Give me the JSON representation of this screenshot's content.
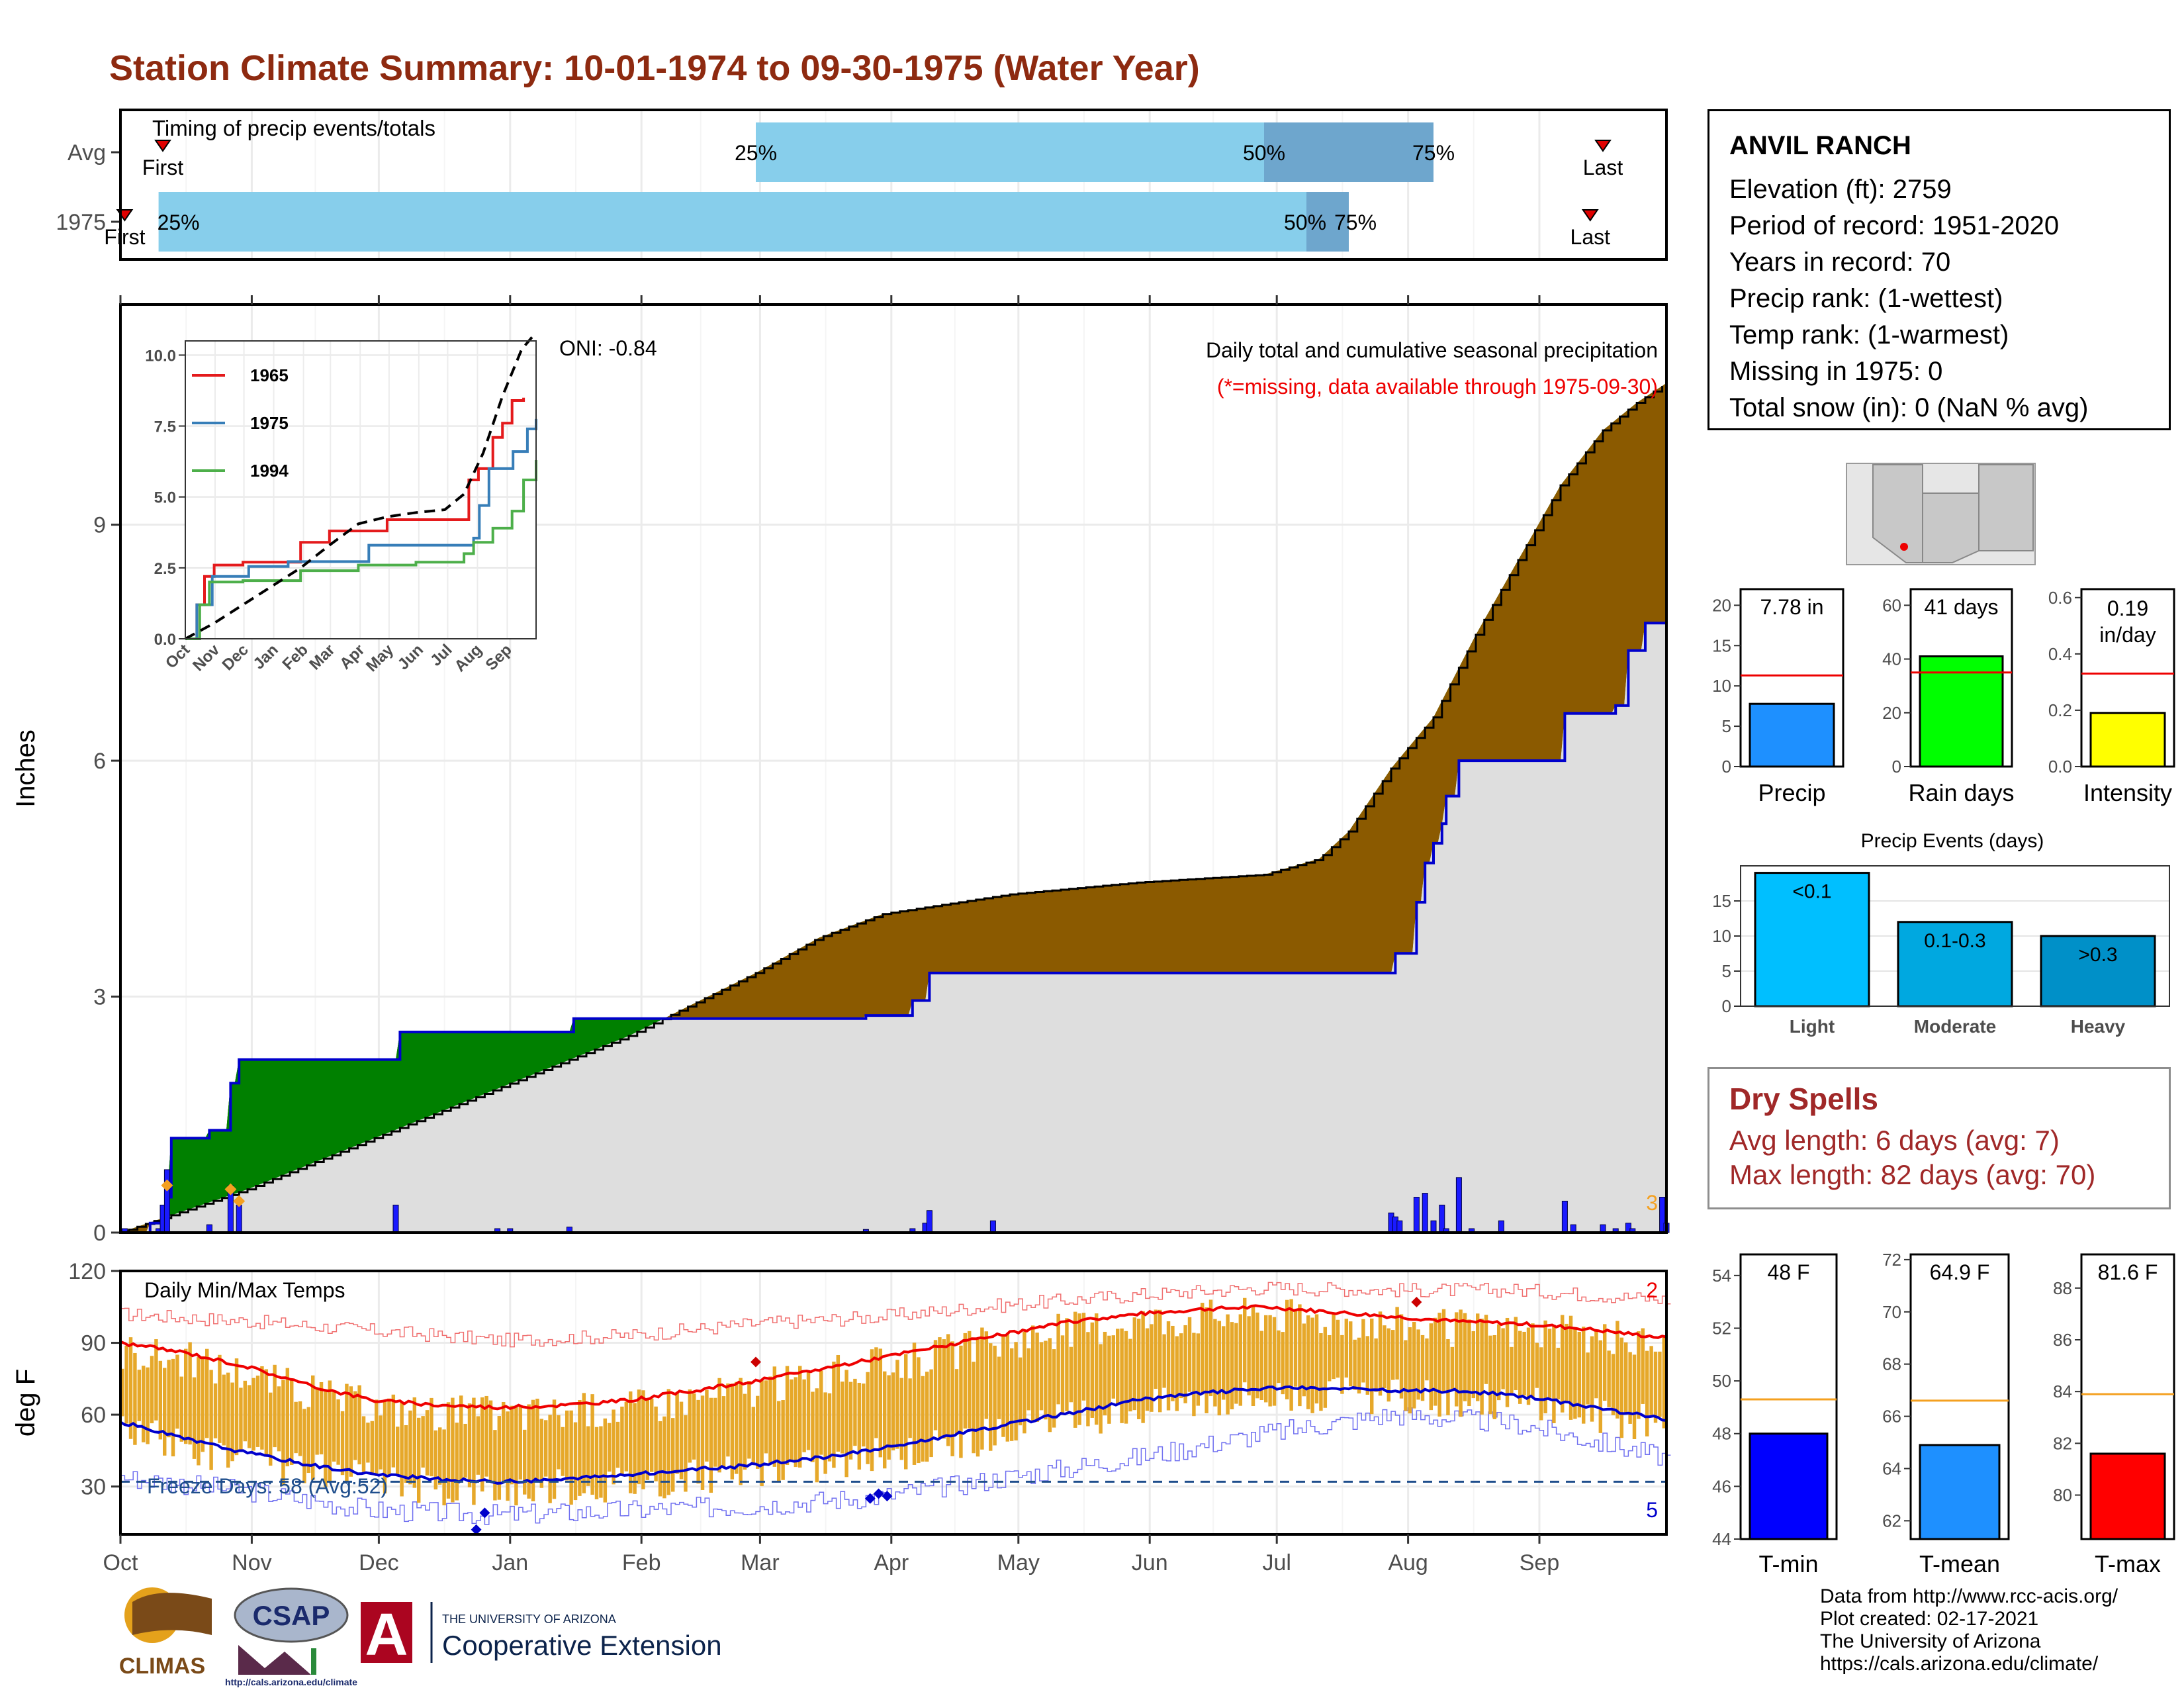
{
  "title": "Station Climate Summary: 10-01-1974 to 09-30-1975 (Water Year)",
  "station": {
    "name": "ANVIL RANCH",
    "lines": [
      "Elevation (ft): 2759",
      "Period of record: 1951-2020",
      "Years in record: 70",
      "Precip rank:  (1-wettest)",
      "Temp rank:  (1-warmest)",
      "Missing in 1975: 0",
      "Total snow (in): 0 (NaN % avg)"
    ]
  },
  "dry_spells": {
    "title": "Dry Spells",
    "avg": "Avg length: 6 days (avg: 7)",
    "max": "Max length: 82 days (avg: 70)"
  },
  "credits": [
    "Data from http://www.rcc-acis.org/",
    "Plot created: 02-17-2021",
    "The University of Arizona",
    "https://cals.arizona.edu/climate/"
  ],
  "logos": {
    "climas": "CLIMAS",
    "csap": "CSAP",
    "csap_url": "http://cals.arizona.edu/climate",
    "ua_small": "THE UNIVERSITY OF ARIZONA",
    "ua_big": "Cooperative Extension",
    "ua_letter": "A"
  },
  "colors": {
    "title": "#8e2a10",
    "above_avg": "#8b5a00",
    "below_avg": "#008000",
    "cum_1975": "#0000cc",
    "gray_fill": "#dedede",
    "daily_bar": "#1a1aff",
    "temp_bar": "#e6a82a",
    "tmax_line": "#ee0000",
    "tmin_line": "#0000cc",
    "light_blue": "#87ceeb",
    "mid_blue": "#6ea6cd"
  },
  "chart_data": [
    {
      "id": "timing",
      "type": "bar",
      "title": "Timing of precip events/totals",
      "rows": [
        "Avg",
        "1975"
      ],
      "x_domain_months": [
        "Oct",
        "Nov",
        "Dec",
        "Jan",
        "Feb",
        "Mar",
        "Apr",
        "May",
        "Jun",
        "Jul",
        "Aug",
        "Sep"
      ],
      "series": [
        {
          "name": "Avg",
          "first_day": 10,
          "p25_day": 150,
          "p50_day": 270,
          "p75_day": 310,
          "last_day": 350
        },
        {
          "name": "1975",
          "first_day": 1,
          "p25_day": 9,
          "p50_day": 280,
          "p75_day": 290,
          "last_day": 347
        }
      ],
      "labels": {
        "first": "First",
        "last": "Last",
        "p25": "25%",
        "p50": "50%",
        "p75": "75%"
      }
    },
    {
      "id": "precip",
      "type": "area",
      "annotation_main": "Daily total and cumulative seasonal precipitation",
      "annotation_missing": "(*=missing, data available through 1975-09-30)",
      "oni": "ONI: -0.84",
      "ylabel": "Inches",
      "yticks": [
        0,
        3,
        6,
        9
      ],
      "ylim": [
        0,
        11.8
      ],
      "xlim_days": [
        0,
        365
      ],
      "xlabels": [
        "Oct",
        "Nov",
        "Dec",
        "Jan",
        "Feb",
        "Mar",
        "Apr",
        "May",
        "Jun",
        "Jul",
        "Aug",
        "Sep"
      ],
      "corner_count": "3",
      "avg_cumulative": [
        [
          0,
          0
        ],
        [
          30,
          0.55
        ],
        [
          60,
          1.2
        ],
        [
          90,
          1.85
        ],
        [
          120,
          2.5
        ],
        [
          150,
          3.3
        ],
        [
          165,
          3.75
        ],
        [
          180,
          4.05
        ],
        [
          210,
          4.3
        ],
        [
          240,
          4.45
        ],
        [
          270,
          4.55
        ],
        [
          283,
          4.75
        ],
        [
          290,
          5.1
        ],
        [
          300,
          5.9
        ],
        [
          310,
          6.55
        ],
        [
          320,
          7.6
        ],
        [
          330,
          8.55
        ],
        [
          340,
          9.5
        ],
        [
          350,
          10.2
        ],
        [
          358,
          10.55
        ],
        [
          365,
          10.8
        ]
      ],
      "cumulative_1975": [
        [
          0,
          0
        ],
        [
          7,
          0.12
        ],
        [
          11,
          0.45
        ],
        [
          12,
          1.2
        ],
        [
          21,
          1.3
        ],
        [
          26,
          1.9
        ],
        [
          28,
          2.2
        ],
        [
          65,
          2.2
        ],
        [
          66,
          2.55
        ],
        [
          106,
          2.55
        ],
        [
          107,
          2.72
        ],
        [
          166,
          2.72
        ],
        [
          160,
          2.72
        ],
        [
          170,
          2.72
        ],
        [
          176,
          2.76
        ],
        [
          180,
          2.76
        ],
        [
          187,
          2.95
        ],
        [
          191,
          3.3
        ],
        [
          300,
          3.3
        ],
        [
          301,
          3.55
        ],
        [
          306,
          4.2
        ],
        [
          308,
          4.7
        ],
        [
          310,
          4.95
        ],
        [
          312,
          5.2
        ],
        [
          313,
          5.55
        ],
        [
          316,
          6.0
        ],
        [
          339,
          6.0
        ],
        [
          341,
          6.6
        ],
        [
          353,
          6.7
        ],
        [
          356,
          7.4
        ],
        [
          360,
          7.75
        ],
        [
          365,
          7.75
        ]
      ],
      "daily_1975": [
        [
          1,
          0.05
        ],
        [
          9,
          0.05
        ],
        [
          10,
          0.35
        ],
        [
          11,
          0.8
        ],
        [
          21,
          0.1
        ],
        [
          26,
          0.6
        ],
        [
          28,
          0.35
        ],
        [
          65,
          0.35
        ],
        [
          89,
          0.05
        ],
        [
          92,
          0.05
        ],
        [
          106,
          0.07
        ],
        [
          176,
          0.04
        ],
        [
          187,
          0.05
        ],
        [
          190,
          0.12
        ],
        [
          191,
          0.28
        ],
        [
          206,
          0.15
        ],
        [
          300,
          0.25
        ],
        [
          301,
          0.2
        ],
        [
          302,
          0.15
        ],
        [
          306,
          0.45
        ],
        [
          308,
          0.5
        ],
        [
          310,
          0.15
        ],
        [
          312,
          0.35
        ],
        [
          313,
          0.05
        ],
        [
          316,
          0.7
        ],
        [
          319,
          0.05
        ],
        [
          326,
          0.15
        ],
        [
          341,
          0.4
        ],
        [
          343,
          0.1
        ],
        [
          350,
          0.1
        ],
        [
          353,
          0.05
        ],
        [
          356,
          0.12
        ],
        [
          357,
          0.05
        ],
        [
          364,
          0.45
        ],
        [
          365,
          0.12
        ]
      ],
      "avg_event_markers": [
        [
          11,
          0.6
        ],
        [
          26,
          0.55
        ],
        [
          28,
          0.4
        ]
      ]
    },
    {
      "id": "inset",
      "type": "line",
      "series": [
        {
          "name": "1965",
          "color": "#e41a1c",
          "values": [
            [
              0,
              0
            ],
            [
              12,
              1.2
            ],
            [
              20,
              2.2
            ],
            [
              30,
              2.6
            ],
            [
              60,
              2.7
            ],
            [
              120,
              3.4
            ],
            [
              150,
              3.8
            ],
            [
              210,
              4.2
            ],
            [
              240,
              4.2
            ],
            [
              270,
              4.2
            ],
            [
              295,
              5.6
            ],
            [
              305,
              6.0
            ],
            [
              320,
              7.1
            ],
            [
              330,
              7.6
            ],
            [
              340,
              8.4
            ],
            [
              352,
              8.5
            ]
          ]
        },
        {
          "name": "1975",
          "color": "#377eb8",
          "values": [
            [
              0,
              0
            ],
            [
              12,
              1.2
            ],
            [
              28,
              2.2
            ],
            [
              66,
              2.55
            ],
            [
              107,
              2.72
            ],
            [
              191,
              3.3
            ],
            [
              300,
              3.55
            ],
            [
              306,
              4.7
            ],
            [
              316,
              6.0
            ],
            [
              341,
              6.6
            ],
            [
              356,
              7.4
            ],
            [
              365,
              7.75
            ]
          ]
        },
        {
          "name": "1994",
          "color": "#4daf4a",
          "values": [
            [
              0,
              0
            ],
            [
              15,
              1.2
            ],
            [
              25,
              2.0
            ],
            [
              60,
              2.05
            ],
            [
              120,
              2.4
            ],
            [
              180,
              2.6
            ],
            [
              240,
              2.7
            ],
            [
              290,
              3.0
            ],
            [
              300,
              3.4
            ],
            [
              320,
              3.9
            ],
            [
              340,
              4.5
            ],
            [
              352,
              5.6
            ],
            [
              365,
              6.3
            ]
          ]
        }
      ],
      "avg_dashed": [
        [
          0,
          0
        ],
        [
          30,
          0.55
        ],
        [
          60,
          1.2
        ],
        [
          90,
          1.85
        ],
        [
          120,
          2.5
        ],
        [
          150,
          3.3
        ],
        [
          180,
          4.05
        ],
        [
          210,
          4.3
        ],
        [
          240,
          4.45
        ],
        [
          270,
          4.55
        ],
        [
          290,
          5.1
        ],
        [
          310,
          6.55
        ],
        [
          330,
          8.55
        ],
        [
          350,
          10.2
        ],
        [
          365,
          10.8
        ]
      ],
      "yticks": [
        "0.0",
        "2.5",
        "5.0",
        "7.5",
        "10.0"
      ],
      "ylim": [
        0,
        10.5
      ],
      "xlabels": [
        "Oct",
        "Nov",
        "Dec",
        "Jan",
        "Feb",
        "Mar",
        "Apr",
        "May",
        "Jun",
        "Jul",
        "Aug",
        "Sep"
      ]
    },
    {
      "id": "temps",
      "type": "bar",
      "title": "Daily Min/Max Temps",
      "ylabel": "deg F",
      "yticks": [
        30,
        60,
        90,
        120
      ],
      "ylim": [
        10,
        120
      ],
      "freeze_line": 32,
      "freeze_label": "Freeze Days: 58 (Avg:52)",
      "corner_max_count": "2",
      "corner_min_count": "5",
      "tmax_avg": [
        [
          0,
          90
        ],
        [
          15,
          86
        ],
        [
          30,
          80
        ],
        [
          45,
          72
        ],
        [
          60,
          66
        ],
        [
          75,
          64
        ],
        [
          90,
          63
        ],
        [
          105,
          64
        ],
        [
          120,
          66
        ],
        [
          135,
          70
        ],
        [
          150,
          74
        ],
        [
          165,
          79
        ],
        [
          180,
          84
        ],
        [
          195,
          89
        ],
        [
          210,
          94
        ],
        [
          225,
          99
        ],
        [
          240,
          102
        ],
        [
          255,
          104
        ],
        [
          270,
          105
        ],
        [
          285,
          103
        ],
        [
          300,
          101
        ],
        [
          315,
          99
        ],
        [
          330,
          98
        ],
        [
          345,
          96
        ],
        [
          365,
          92
        ]
      ],
      "tmin_avg": [
        [
          0,
          57
        ],
        [
          15,
          50
        ],
        [
          30,
          44
        ],
        [
          45,
          39
        ],
        [
          60,
          35
        ],
        [
          75,
          33
        ],
        [
          90,
          32
        ],
        [
          105,
          33
        ],
        [
          120,
          35
        ],
        [
          135,
          37
        ],
        [
          150,
          39
        ],
        [
          165,
          42
        ],
        [
          180,
          46
        ],
        [
          195,
          51
        ],
        [
          210,
          56
        ],
        [
          225,
          61
        ],
        [
          240,
          66
        ],
        [
          255,
          69
        ],
        [
          270,
          71
        ],
        [
          285,
          71
        ],
        [
          300,
          70
        ],
        [
          315,
          70
        ],
        [
          330,
          68
        ],
        [
          345,
          64
        ],
        [
          365,
          58
        ]
      ],
      "tmax_record_env": [
        [
          0,
          102
        ],
        [
          30,
          99
        ],
        [
          60,
          95
        ],
        [
          90,
          91
        ],
        [
          120,
          93
        ],
        [
          150,
          98
        ],
        [
          180,
          101
        ],
        [
          210,
          106
        ],
        [
          240,
          110
        ],
        [
          270,
          113
        ],
        [
          300,
          112
        ],
        [
          330,
          112
        ],
        [
          365,
          108
        ]
      ],
      "tmin_record_env": [
        [
          0,
          34
        ],
        [
          30,
          28
        ],
        [
          60,
          20
        ],
        [
          90,
          18
        ],
        [
          120,
          20
        ],
        [
          150,
          22
        ],
        [
          180,
          26
        ],
        [
          210,
          34
        ],
        [
          240,
          42
        ],
        [
          270,
          52
        ],
        [
          300,
          60
        ],
        [
          330,
          56
        ],
        [
          365,
          42
        ]
      ],
      "record_max_markers": [
        [
          150,
          82
        ],
        [
          306,
          107
        ]
      ],
      "record_min_markers": [
        [
          84,
          12
        ],
        [
          86,
          19
        ],
        [
          177,
          25
        ],
        [
          179,
          27
        ],
        [
          181,
          26
        ]
      ],
      "xlabels": [
        "Oct",
        "Nov",
        "Dec",
        "Jan",
        "Feb",
        "Mar",
        "Apr",
        "May",
        "Jun",
        "Jul",
        "Aug",
        "Sep"
      ]
    },
    {
      "id": "precip_summary",
      "type": "bar",
      "panels": [
        {
          "label": "Precip",
          "value": 7.78,
          "text": "7.78 in",
          "avg": 11.3,
          "ylim": [
            0,
            22
          ],
          "yticks": [
            "0",
            "5",
            "10",
            "15",
            "20"
          ],
          "color": "#1e90ff"
        },
        {
          "label": "Rain days",
          "value": 41,
          "text": "41 days",
          "avg": 35,
          "ylim": [
            0,
            66
          ],
          "yticks": [
            "0",
            "20",
            "40",
            "60"
          ],
          "color": "#00ff00"
        },
        {
          "label": "Intensity",
          "value": 0.19,
          "text": "0.19\nin/day",
          "text1": "0.19",
          "text2": "in/day",
          "avg": 0.33,
          "ylim": [
            0,
            0.63
          ],
          "yticks": [
            "0.0",
            "0.2",
            "0.4",
            "0.6"
          ],
          "color": "#ffff00"
        }
      ]
    },
    {
      "id": "precip_events",
      "type": "bar",
      "title": "Precip Events (days)",
      "categories": [
        "Light",
        "Moderate",
        "Heavy"
      ],
      "bar_labels": [
        "<0.1",
        "0.1-0.3",
        ">0.3"
      ],
      "values": [
        19,
        12,
        10
      ],
      "ylim": [
        0,
        20
      ],
      "yticks": [
        "0",
        "5",
        "10",
        "15"
      ],
      "colors": [
        "#00bfff",
        "#00a8e0",
        "#0090c8"
      ]
    },
    {
      "id": "temp_summary",
      "type": "bar",
      "panels": [
        {
          "label": "T-min",
          "value": 48,
          "text": "48 F",
          "avg": 49.3,
          "ylim": [
            44,
            54.8
          ],
          "yticks": [
            "44",
            "46",
            "48",
            "50",
            "52",
            "54"
          ],
          "color": "#0000ff"
        },
        {
          "label": "T-mean",
          "value": 64.9,
          "text": "64.9 F",
          "avg": 66.6,
          "ylim": [
            61.3,
            72.2
          ],
          "yticks": [
            "62",
            "64",
            "66",
            "68",
            "70",
            "72"
          ],
          "color": "#1e90ff"
        },
        {
          "label": "T-max",
          "value": 81.6,
          "text": "81.6 F",
          "avg": 83.9,
          "ylim": [
            78.3,
            89.3
          ],
          "yticks": [
            "80",
            "82",
            "84",
            "86",
            "88"
          ],
          "color": "#ff0000"
        }
      ]
    }
  ]
}
